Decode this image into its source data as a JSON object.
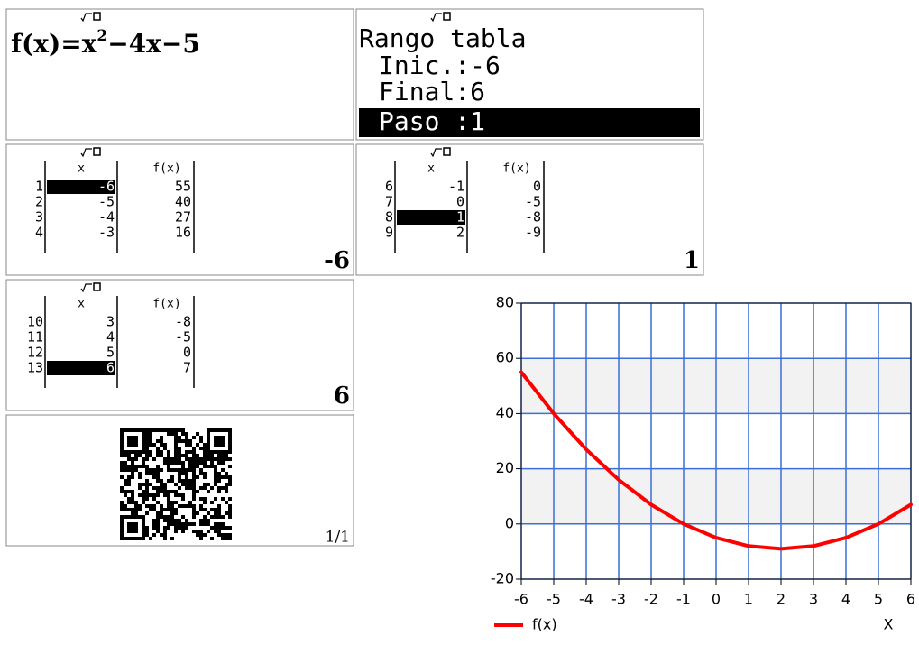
{
  "formula_screen": {
    "lhs": "f(x)=x",
    "exponent": 2,
    "rest": "−4x−5"
  },
  "range_screen": {
    "title": "Rango tabla",
    "lines": [
      "Inic.:-6",
      "Final:6",
      "Paso :1"
    ]
  },
  "table_screens": [
    {
      "header": [
        "x",
        "f(x)"
      ],
      "rows": [
        [
          1,
          -6,
          55
        ],
        [
          2,
          -5,
          40
        ],
        [
          3,
          -4,
          27
        ],
        [
          4,
          -3,
          16
        ]
      ],
      "selected": -6
    },
    {
      "header": [
        "x",
        "f(x)"
      ],
      "rows": [
        [
          6,
          -1,
          0
        ],
        [
          7,
          0,
          -5
        ],
        [
          8,
          1,
          -8
        ],
        [
          9,
          2,
          -9
        ]
      ],
      "selected": 1
    },
    {
      "header": [
        "x",
        "f(x)"
      ],
      "rows": [
        [
          10,
          3,
          -8
        ],
        [
          11,
          4,
          -5
        ],
        [
          12,
          5,
          0
        ],
        [
          13,
          6,
          7
        ]
      ],
      "selected": 6
    }
  ],
  "qr_screen": {
    "page": "1/1"
  },
  "chart_data": {
    "type": "line",
    "x_label": "X",
    "x": [
      -6,
      -5,
      -4,
      -3,
      -2,
      -1,
      0,
      1,
      2,
      3,
      4,
      5,
      6
    ],
    "series": [
      {
        "name": "f(x)",
        "color": "#ff0000",
        "values": [
          55,
          40,
          27,
          16,
          7,
          0,
          -5,
          -8,
          -9,
          -8,
          -5,
          0,
          7
        ]
      }
    ],
    "xlim": [
      -6,
      6
    ],
    "xticks": [
      -6,
      -5,
      -4,
      -3,
      -2,
      -1,
      0,
      1,
      2,
      3,
      4,
      5,
      6
    ],
    "ylim": [
      -20,
      80
    ],
    "yticks": [
      -20,
      0,
      20,
      40,
      60,
      80
    ],
    "grid": true,
    "legend": "bottom-left"
  }
}
